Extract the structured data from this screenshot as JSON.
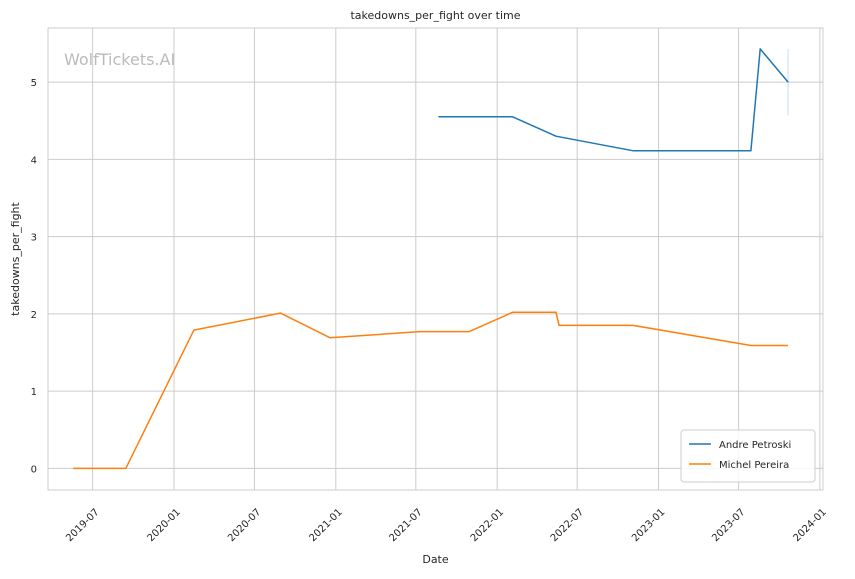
{
  "chart_data": {
    "type": "line",
    "title": "takedowns_per_fight over time",
    "xlabel": "Date",
    "ylabel": "takedowns_per_fight",
    "watermark": "WolfTickets.AI",
    "x_ticks": [
      "2019-07",
      "2020-01",
      "2020-07",
      "2021-01",
      "2021-07",
      "2022-01",
      "2022-07",
      "2023-01",
      "2023-07",
      "2024-01"
    ],
    "y_ticks": [
      0,
      1,
      2,
      3,
      4,
      5
    ],
    "xlim": [
      "2019-03-22",
      "2024-01-08"
    ],
    "ylim": [
      -0.28,
      5.7
    ],
    "grid": true,
    "legend_position": "lower-right",
    "series": [
      {
        "name": "Andre Petroski",
        "color": "#1f77b4",
        "points": [
          {
            "date": "2021-08-21",
            "value": 4.55
          },
          {
            "date": "2022-02-05",
            "value": 4.55
          },
          {
            "date": "2022-05-14",
            "value": 4.3
          },
          {
            "date": "2022-11-05",
            "value": 4.11
          },
          {
            "date": "2023-07-29",
            "value": 4.11
          },
          {
            "date": "2023-08-19",
            "value": 5.43
          },
          {
            "date": "2023-10-21",
            "value": 5.0
          }
        ]
      },
      {
        "name": "Michel Pereira",
        "color": "#ff7f0e",
        "points": [
          {
            "date": "2019-05-18",
            "value": 0.0
          },
          {
            "date": "2019-09-14",
            "value": 0.0
          },
          {
            "date": "2020-02-15",
            "value": 1.79
          },
          {
            "date": "2020-08-29",
            "value": 2.01
          },
          {
            "date": "2020-12-19",
            "value": 1.69
          },
          {
            "date": "2021-07-10",
            "value": 1.77
          },
          {
            "date": "2021-10-30",
            "value": 1.77
          },
          {
            "date": "2022-02-05",
            "value": 2.02
          },
          {
            "date": "2022-05-14",
            "value": 2.02
          },
          {
            "date": "2022-05-21",
            "value": 1.85
          },
          {
            "date": "2022-11-05",
            "value": 1.85
          },
          {
            "date": "2023-07-29",
            "value": 1.59
          },
          {
            "date": "2023-10-21",
            "value": 1.59
          }
        ]
      }
    ]
  }
}
